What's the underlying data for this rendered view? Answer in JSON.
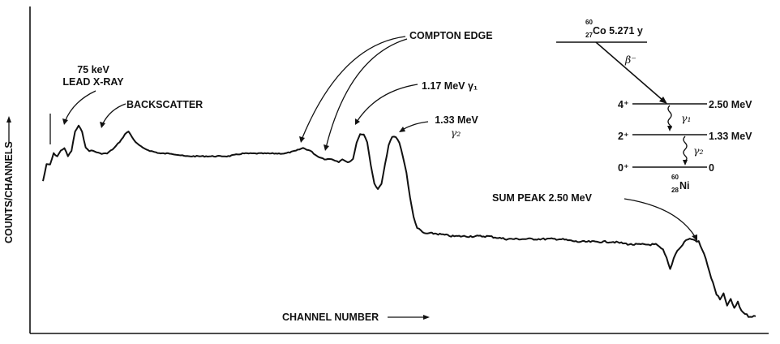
{
  "chart_data": {
    "type": "line",
    "xlabel": "CHANNEL NUMBER",
    "ylabel": "COUNTS/CHANNELS",
    "grid": false,
    "legend": "none",
    "series": [
      {
        "values": [
          [
            0,
            0.52
          ],
          [
            1,
            0.58
          ],
          [
            2,
            0.58
          ],
          [
            3,
            0.62
          ],
          [
            4,
            0.61
          ],
          [
            5,
            0.63
          ],
          [
            6,
            0.64
          ],
          [
            7,
            0.61
          ],
          [
            8,
            0.63
          ],
          [
            9,
            0.7
          ],
          [
            10,
            0.72
          ],
          [
            11,
            0.7
          ],
          [
            12,
            0.64
          ],
          [
            13,
            0.63
          ],
          [
            14,
            0.63
          ],
          [
            16,
            0.62
          ],
          [
            18,
            0.62
          ],
          [
            20,
            0.64
          ],
          [
            22,
            0.67
          ],
          [
            23,
            0.69
          ],
          [
            24,
            0.7
          ],
          [
            25,
            0.68
          ],
          [
            26,
            0.66
          ],
          [
            28,
            0.64
          ],
          [
            30,
            0.63
          ],
          [
            33,
            0.62
          ],
          [
            36,
            0.62
          ],
          [
            40,
            0.61
          ],
          [
            44,
            0.61
          ],
          [
            48,
            0.61
          ],
          [
            52,
            0.61
          ],
          [
            56,
            0.62
          ],
          [
            60,
            0.62
          ],
          [
            64,
            0.62
          ],
          [
            68,
            0.62
          ],
          [
            71,
            0.63
          ],
          [
            73,
            0.64
          ],
          [
            75,
            0.63
          ],
          [
            77,
            0.61
          ],
          [
            79,
            0.6
          ],
          [
            81,
            0.6
          ],
          [
            83,
            0.59
          ],
          [
            84,
            0.6
          ],
          [
            85,
            0.59
          ],
          [
            86,
            0.59
          ],
          [
            87,
            0.6
          ],
          [
            88,
            0.66
          ],
          [
            89,
            0.69
          ],
          [
            90,
            0.69
          ],
          [
            91,
            0.66
          ],
          [
            92,
            0.58
          ],
          [
            93,
            0.51
          ],
          [
            94,
            0.49
          ],
          [
            95,
            0.51
          ],
          [
            96,
            0.58
          ],
          [
            97,
            0.65
          ],
          [
            98,
            0.68
          ],
          [
            99,
            0.68
          ],
          [
            100,
            0.66
          ],
          [
            101,
            0.61
          ],
          [
            102,
            0.55
          ],
          [
            103,
            0.46
          ],
          [
            104,
            0.39
          ],
          [
            105,
            0.35
          ],
          [
            106,
            0.34
          ],
          [
            107,
            0.33
          ],
          [
            110,
            0.33
          ],
          [
            115,
            0.32
          ],
          [
            120,
            0.32
          ],
          [
            125,
            0.32
          ],
          [
            130,
            0.31
          ],
          [
            135,
            0.31
          ],
          [
            140,
            0.31
          ],
          [
            145,
            0.31
          ],
          [
            150,
            0.3
          ],
          [
            155,
            0.3
          ],
          [
            160,
            0.3
          ],
          [
            165,
            0.29
          ],
          [
            170,
            0.29
          ],
          [
            172,
            0.29
          ],
          [
            174,
            0.27
          ],
          [
            175,
            0.24
          ],
          [
            176,
            0.2
          ],
          [
            177,
            0.24
          ],
          [
            178,
            0.27
          ],
          [
            179,
            0.28
          ],
          [
            180,
            0.3
          ],
          [
            181,
            0.31
          ],
          [
            182,
            0.31
          ],
          [
            184,
            0.3
          ],
          [
            185,
            0.27
          ],
          [
            186,
            0.24
          ],
          [
            187,
            0.19
          ],
          [
            188,
            0.15
          ],
          [
            189,
            0.11
          ],
          [
            190,
            0.09
          ],
          [
            191,
            0.11
          ],
          [
            192,
            0.07
          ],
          [
            193,
            0.09
          ],
          [
            194,
            0.06
          ],
          [
            195,
            0.08
          ],
          [
            196,
            0.05
          ],
          [
            197,
            0.04
          ],
          [
            198,
            0.03
          ],
          [
            199,
            0.03
          ],
          [
            200,
            0.03
          ]
        ]
      }
    ],
    "xlim": [
      0,
      200
    ],
    "ylim": [
      0,
      1
    ],
    "annotations": [
      {
        "text_lines": [
          "75 keV",
          "LEAD X-RAY"
        ]
      },
      {
        "text_lines": [
          "BACKSCATTER"
        ]
      },
      {
        "text_lines": [
          "COMPTON EDGE"
        ]
      },
      {
        "text_lines": [
          "1.17 MeV γ₁"
        ]
      },
      {
        "text_lines": [
          "1.33 MeV",
          "γ₂"
        ]
      },
      {
        "text_lines": [
          "SUM PEAK 2.50 MeV"
        ]
      }
    ]
  },
  "decay_scheme": {
    "parent_mass": "60",
    "parent_z": "27",
    "parent_label": "Co 5.271 y",
    "beta": "β⁻",
    "levels": [
      {
        "spin": "4⁺",
        "energy": "2.50 MeV"
      },
      {
        "spin": "2⁺",
        "energy": "1.33 MeV"
      },
      {
        "spin": "0⁺",
        "energy": "0"
      }
    ],
    "gamma1": "γ₁",
    "gamma2": "γ₂",
    "daughter_mass": "60",
    "daughter_z": "28",
    "daughter_label": "Ni"
  }
}
